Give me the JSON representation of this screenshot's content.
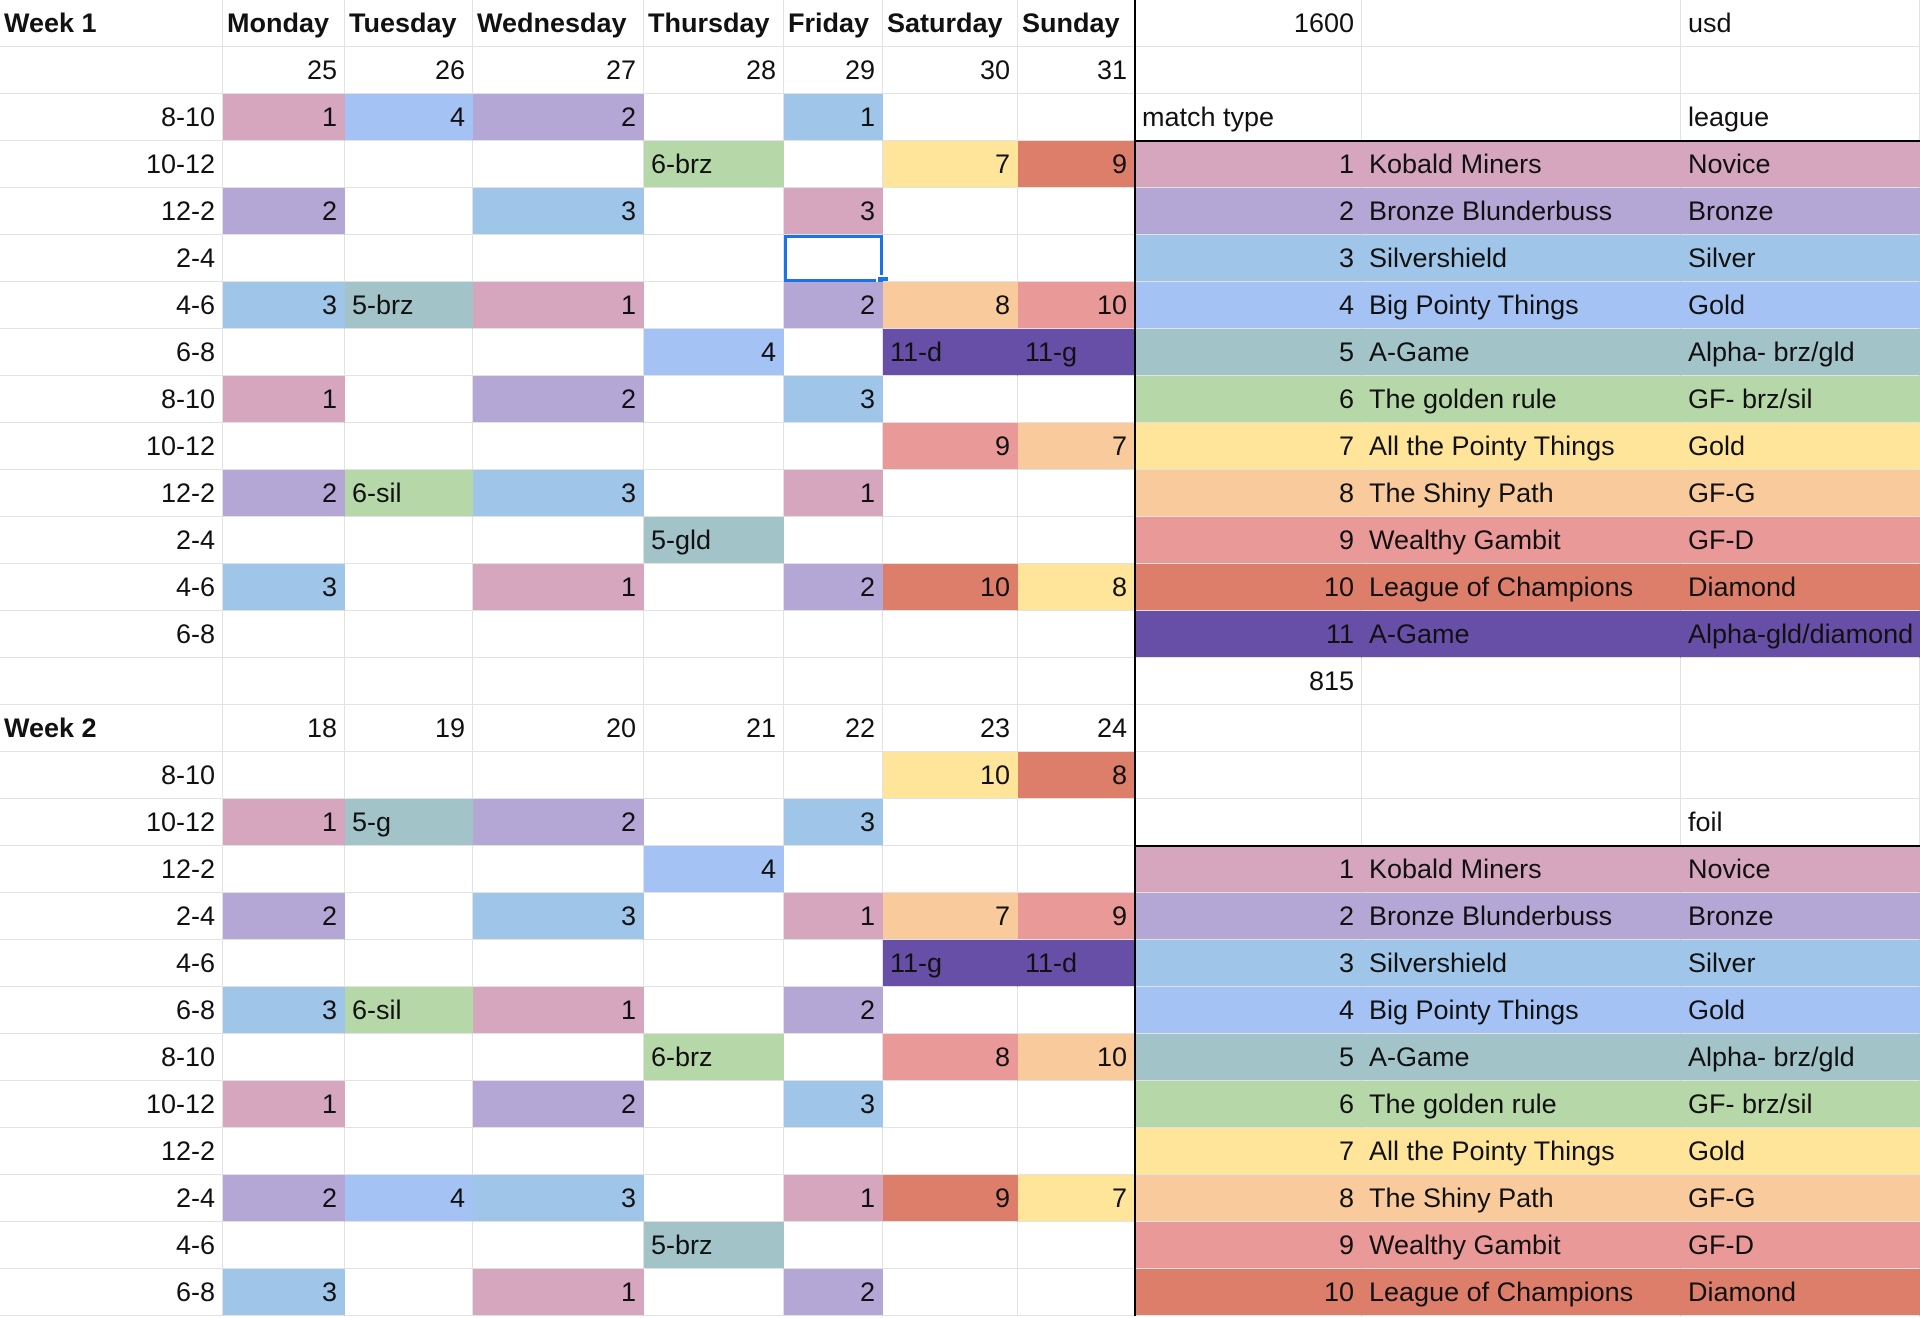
{
  "sheet": {
    "rows": [
      [
        {
          "text": "Week 1",
          "bold": true
        },
        {
          "text": "Monday",
          "bold": true
        },
        {
          "text": "Tuesday",
          "bold": true
        },
        {
          "text": "Wednesday",
          "bold": true
        },
        {
          "text": "Thursday",
          "bold": true
        },
        {
          "text": "Friday",
          "bold": true
        },
        {
          "text": "Saturday",
          "bold": true
        },
        {
          "text": "Sunday",
          "bold": true
        },
        {
          "text": "1600"
        },
        null,
        {
          "text": "usd"
        }
      ],
      [
        null,
        {
          "text": "25"
        },
        {
          "text": "26"
        },
        {
          "text": "27"
        },
        {
          "text": "28"
        },
        {
          "text": "29"
        },
        {
          "text": "30"
        },
        {
          "text": "31"
        },
        null,
        null,
        null
      ],
      [
        {
          "text": "8-10"
        },
        {
          "text": "1",
          "color": "#d5a6bd"
        },
        {
          "text": "4",
          "color": "#a4c2f4"
        },
        {
          "text": "2",
          "color": "#b4a7d6"
        },
        null,
        {
          "text": "1",
          "color": "#9fc5e8"
        },
        null,
        null,
        {
          "text": "match type"
        },
        null,
        {
          "text": "league"
        }
      ],
      [
        {
          "text": "10-12"
        },
        null,
        null,
        null,
        {
          "text": "6-brz",
          "color": "#b6d7a8"
        },
        null,
        {
          "text": "7",
          "color": "#ffe599"
        },
        {
          "text": "9",
          "color": "#dd7e6b"
        },
        {
          "text": "1",
          "color": "#d5a6bd"
        },
        {
          "text": "Kobald Miners",
          "color": "#d5a6bd"
        },
        {
          "text": "Novice",
          "color": "#d5a6bd"
        }
      ],
      [
        {
          "text": "12-2"
        },
        {
          "text": "2",
          "color": "#b4a7d6"
        },
        null,
        {
          "text": "3",
          "color": "#9fc5e8"
        },
        null,
        {
          "text": "3",
          "color": "#d5a6bd"
        },
        null,
        null,
        {
          "text": "2",
          "color": "#b4a7d6"
        },
        {
          "text": "Bronze Blunderbuss",
          "color": "#b4a7d6"
        },
        {
          "text": "Bronze",
          "color": "#b4a7d6"
        }
      ],
      [
        {
          "text": "2-4"
        },
        null,
        null,
        null,
        null,
        {
          "selected": true
        },
        null,
        null,
        {
          "text": "3",
          "color": "#9fc5e8"
        },
        {
          "text": "Silvershield",
          "color": "#9fc5e8"
        },
        {
          "text": "Silver",
          "color": "#9fc5e8"
        }
      ],
      [
        {
          "text": "4-6"
        },
        {
          "text": "3",
          "color": "#9fc5e8"
        },
        {
          "text": "5-brz",
          "color": "#a2c4c9"
        },
        {
          "text": "1",
          "color": "#d5a6bd"
        },
        null,
        {
          "text": "2",
          "color": "#b4a7d6"
        },
        {
          "text": "8",
          "color": "#f9cb9c"
        },
        {
          "text": "10",
          "color": "#ea9999"
        },
        {
          "text": "4",
          "color": "#a4c2f4"
        },
        {
          "text": "Big Pointy Things",
          "color": "#a4c2f4"
        },
        {
          "text": "Gold",
          "color": "#a4c2f4"
        }
      ],
      [
        {
          "text": "6-8"
        },
        null,
        null,
        null,
        {
          "text": "4",
          "color": "#a4c2f4"
        },
        null,
        {
          "text": "11-d",
          "color": "#674ea7"
        },
        {
          "text": "11-g",
          "color": "#674ea7"
        },
        {
          "text": "5",
          "color": "#a2c4c9"
        },
        {
          "text": "A-Game",
          "color": "#a2c4c9"
        },
        {
          "text": "Alpha- brz/gld",
          "color": "#a2c4c9"
        }
      ],
      [
        {
          "text": "8-10"
        },
        {
          "text": "1",
          "color": "#d5a6bd"
        },
        null,
        {
          "text": "2",
          "color": "#b4a7d6"
        },
        null,
        {
          "text": "3",
          "color": "#9fc5e8"
        },
        null,
        null,
        {
          "text": "6",
          "color": "#b6d7a8"
        },
        {
          "text": "The golden rule",
          "color": "#b6d7a8"
        },
        {
          "text": "GF- brz/sil",
          "color": "#b6d7a8"
        }
      ],
      [
        {
          "text": "10-12"
        },
        null,
        null,
        null,
        null,
        null,
        {
          "text": "9",
          "color": "#ea9999"
        },
        {
          "text": "7",
          "color": "#f9cb9c"
        },
        {
          "text": "7",
          "color": "#ffe599"
        },
        {
          "text": "All the Pointy Things",
          "color": "#ffe599"
        },
        {
          "text": "Gold",
          "color": "#ffe599"
        }
      ],
      [
        {
          "text": "12-2"
        },
        {
          "text": "2",
          "color": "#b4a7d6"
        },
        {
          "text": "6-sil",
          "color": "#b6d7a8"
        },
        {
          "text": "3",
          "color": "#9fc5e8"
        },
        null,
        {
          "text": "1",
          "color": "#d5a6bd"
        },
        null,
        null,
        {
          "text": "8",
          "color": "#f9cb9c"
        },
        {
          "text": "The Shiny Path",
          "color": "#f9cb9c"
        },
        {
          "text": "GF-G",
          "color": "#f9cb9c"
        }
      ],
      [
        {
          "text": "2-4"
        },
        null,
        null,
        null,
        {
          "text": "5-gld",
          "color": "#a2c4c9"
        },
        null,
        null,
        null,
        {
          "text": "9",
          "color": "#ea9999"
        },
        {
          "text": "Wealthy Gambit",
          "color": "#ea9999"
        },
        {
          "text": "GF-D",
          "color": "#ea9999"
        }
      ],
      [
        {
          "text": "4-6"
        },
        {
          "text": "3",
          "color": "#9fc5e8"
        },
        null,
        {
          "text": "1",
          "color": "#d5a6bd"
        },
        null,
        {
          "text": "2",
          "color": "#b4a7d6"
        },
        {
          "text": "10",
          "color": "#dd7e6b"
        },
        {
          "text": "8",
          "color": "#ffe599"
        },
        {
          "text": "10",
          "color": "#dd7e6b"
        },
        {
          "text": "League of Champions",
          "color": "#dd7e6b"
        },
        {
          "text": "Diamond",
          "color": "#dd7e6b"
        }
      ],
      [
        {
          "text": "6-8"
        },
        null,
        null,
        null,
        null,
        null,
        null,
        null,
        {
          "text": "11",
          "color": "#674ea7"
        },
        {
          "text": "A-Game",
          "color": "#674ea7"
        },
        {
          "text": "Alpha-gld/diamond",
          "color": "#674ea7"
        }
      ],
      [
        null,
        null,
        null,
        null,
        null,
        null,
        null,
        null,
        {
          "text": "815"
        },
        null,
        null
      ],
      [
        {
          "text": "Week 2",
          "bold": true
        },
        {
          "text": "18"
        },
        {
          "text": "19"
        },
        {
          "text": "20"
        },
        {
          "text": "21"
        },
        {
          "text": "22"
        },
        {
          "text": "23"
        },
        {
          "text": "24"
        },
        null,
        null,
        null
      ],
      [
        {
          "text": "8-10"
        },
        null,
        null,
        null,
        null,
        null,
        {
          "text": "10",
          "color": "#ffe599"
        },
        {
          "text": "8",
          "color": "#dd7e6b"
        },
        null,
        null,
        null
      ],
      [
        {
          "text": "10-12"
        },
        {
          "text": "1",
          "color": "#d5a6bd"
        },
        {
          "text": "5-g",
          "color": "#a2c4c9"
        },
        {
          "text": "2",
          "color": "#b4a7d6"
        },
        null,
        {
          "text": "3",
          "color": "#9fc5e8"
        },
        null,
        null,
        null,
        null,
        {
          "text": "foil"
        }
      ],
      [
        {
          "text": "12-2"
        },
        null,
        null,
        null,
        {
          "text": "4",
          "color": "#a4c2f4"
        },
        null,
        null,
        null,
        {
          "text": "1",
          "color": "#d5a6bd"
        },
        {
          "text": "Kobald Miners",
          "color": "#d5a6bd"
        },
        {
          "text": "Novice",
          "color": "#d5a6bd"
        }
      ],
      [
        {
          "text": "2-4"
        },
        {
          "text": "2",
          "color": "#b4a7d6"
        },
        null,
        {
          "text": "3",
          "color": "#9fc5e8"
        },
        null,
        {
          "text": "1",
          "color": "#d5a6bd"
        },
        {
          "text": "7",
          "color": "#f9cb9c"
        },
        {
          "text": "9",
          "color": "#ea9999"
        },
        {
          "text": "2",
          "color": "#b4a7d6"
        },
        {
          "text": "Bronze Blunderbuss",
          "color": "#b4a7d6"
        },
        {
          "text": "Bronze",
          "color": "#b4a7d6"
        }
      ],
      [
        {
          "text": "4-6"
        },
        null,
        null,
        null,
        null,
        null,
        {
          "text": "11-g",
          "color": "#674ea7"
        },
        {
          "text": "11-d",
          "color": "#674ea7"
        },
        {
          "text": "3",
          "color": "#9fc5e8"
        },
        {
          "text": "Silvershield",
          "color": "#9fc5e8"
        },
        {
          "text": "Silver",
          "color": "#9fc5e8"
        }
      ],
      [
        {
          "text": "6-8"
        },
        {
          "text": "3",
          "color": "#9fc5e8"
        },
        {
          "text": "6-sil",
          "color": "#b6d7a8"
        },
        {
          "text": "1",
          "color": "#d5a6bd"
        },
        null,
        {
          "text": "2",
          "color": "#b4a7d6"
        },
        null,
        null,
        {
          "text": "4",
          "color": "#a4c2f4"
        },
        {
          "text": "Big Pointy Things",
          "color": "#a4c2f4"
        },
        {
          "text": "Gold",
          "color": "#a4c2f4"
        }
      ],
      [
        {
          "text": "8-10"
        },
        null,
        null,
        null,
        {
          "text": "6-brz",
          "color": "#b6d7a8"
        },
        null,
        {
          "text": "8",
          "color": "#ea9999"
        },
        {
          "text": "10",
          "color": "#f9cb9c"
        },
        {
          "text": "5",
          "color": "#a2c4c9"
        },
        {
          "text": "A-Game",
          "color": "#a2c4c9"
        },
        {
          "text": "Alpha- brz/gld",
          "color": "#a2c4c9"
        }
      ],
      [
        {
          "text": "10-12"
        },
        {
          "text": "1",
          "color": "#d5a6bd"
        },
        null,
        {
          "text": "2",
          "color": "#b4a7d6"
        },
        null,
        {
          "text": "3",
          "color": "#9fc5e8"
        },
        null,
        null,
        {
          "text": "6",
          "color": "#b6d7a8"
        },
        {
          "text": "The golden rule",
          "color": "#b6d7a8"
        },
        {
          "text": "GF- brz/sil",
          "color": "#b6d7a8"
        }
      ],
      [
        {
          "text": "12-2"
        },
        null,
        null,
        null,
        null,
        null,
        null,
        null,
        {
          "text": "7",
          "color": "#ffe599"
        },
        {
          "text": "All the Pointy Things",
          "color": "#ffe599"
        },
        {
          "text": "Gold",
          "color": "#ffe599"
        }
      ],
      [
        {
          "text": "2-4"
        },
        {
          "text": "2",
          "color": "#b4a7d6"
        },
        {
          "text": "4",
          "color": "#a4c2f4"
        },
        {
          "text": "3",
          "color": "#9fc5e8"
        },
        null,
        {
          "text": "1",
          "color": "#d5a6bd"
        },
        {
          "text": "9",
          "color": "#dd7e6b"
        },
        {
          "text": "7",
          "color": "#ffe599"
        },
        {
          "text": "8",
          "color": "#f9cb9c"
        },
        {
          "text": "The Shiny Path",
          "color": "#f9cb9c"
        },
        {
          "text": "GF-G",
          "color": "#f9cb9c"
        }
      ],
      [
        {
          "text": "4-6"
        },
        null,
        null,
        null,
        {
          "text": "5-brz",
          "color": "#a2c4c9"
        },
        null,
        null,
        null,
        {
          "text": "9",
          "color": "#ea9999"
        },
        {
          "text": "Wealthy Gambit",
          "color": "#ea9999"
        },
        {
          "text": "GF-D",
          "color": "#ea9999"
        }
      ],
      [
        {
          "text": "6-8"
        },
        {
          "text": "3",
          "color": "#9fc5e8"
        },
        null,
        {
          "text": "1",
          "color": "#d5a6bd"
        },
        null,
        {
          "text": "2",
          "color": "#b4a7d6"
        },
        null,
        null,
        {
          "text": "10",
          "color": "#dd7e6b"
        },
        {
          "text": "League of Champions",
          "color": "#dd7e6b"
        },
        {
          "text": "Diamond",
          "color": "#dd7e6b"
        }
      ]
    ]
  }
}
